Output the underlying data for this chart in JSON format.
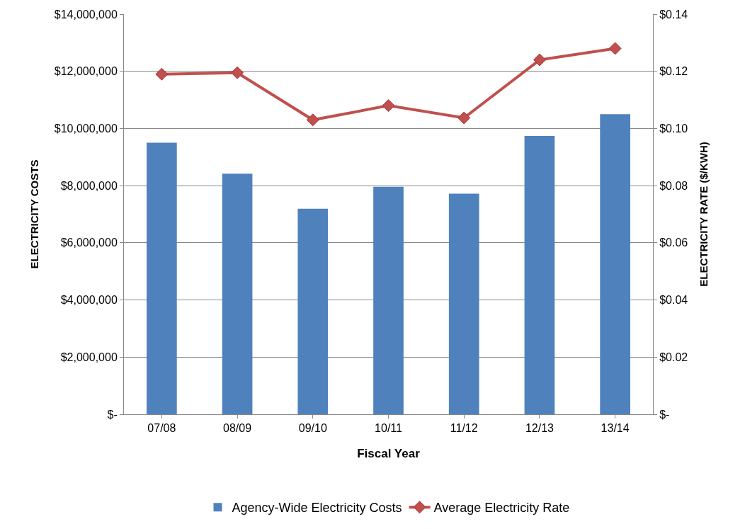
{
  "chart_data": {
    "type": "bar",
    "xlabel": "Fiscal Year",
    "ylabel": "ELECTRICITY COSTS",
    "y2label": "ELECTRICITY RATE ($/KWH)",
    "categories": [
      "07/08",
      "08/09",
      "09/10",
      "10/11",
      "11/12",
      "12/13",
      "13/14"
    ],
    "series": [
      {
        "name": "Agency-Wide Electricity Costs",
        "color": "#4f81bd",
        "values": [
          9500000,
          8420000,
          7190000,
          7960000,
          7720000,
          9740000,
          10500000
        ]
      },
      {
        "name": "Average Electricity Rate",
        "type": "line",
        "axis": "y2",
        "color": "#c0504d",
        "marker": "diamond",
        "values": [
          0.119,
          0.1195,
          0.103,
          0.108,
          0.1037,
          0.124,
          0.128
        ]
      }
    ],
    "ylim": [
      0,
      14000000
    ],
    "yticks": [
      {
        "value": 0,
        "label": "$-"
      },
      {
        "value": 2000000,
        "label": "$2,000,000"
      },
      {
        "value": 4000000,
        "label": "$4,000,000"
      },
      {
        "value": 6000000,
        "label": "$6,000,000"
      },
      {
        "value": 8000000,
        "label": "$8,000,000"
      },
      {
        "value": 10000000,
        "label": "$10,000,000"
      },
      {
        "value": 12000000,
        "label": "$12,000,000"
      },
      {
        "value": 14000000,
        "label": "$14,000,000"
      }
    ],
    "y2lim": [
      0,
      0.14
    ],
    "y2ticks": [
      {
        "value": 0,
        "label": "$-"
      },
      {
        "value": 0.02,
        "label": "$0.02"
      },
      {
        "value": 0.04,
        "label": "$0.04"
      },
      {
        "value": 0.06,
        "label": "$0.06"
      },
      {
        "value": 0.08,
        "label": "$0.08"
      },
      {
        "value": 0.1,
        "label": "$0.10"
      },
      {
        "value": 0.12,
        "label": "$0.12"
      },
      {
        "value": 0.14,
        "label": "$0.14"
      }
    ],
    "grid": "y",
    "legend": "bottom"
  }
}
